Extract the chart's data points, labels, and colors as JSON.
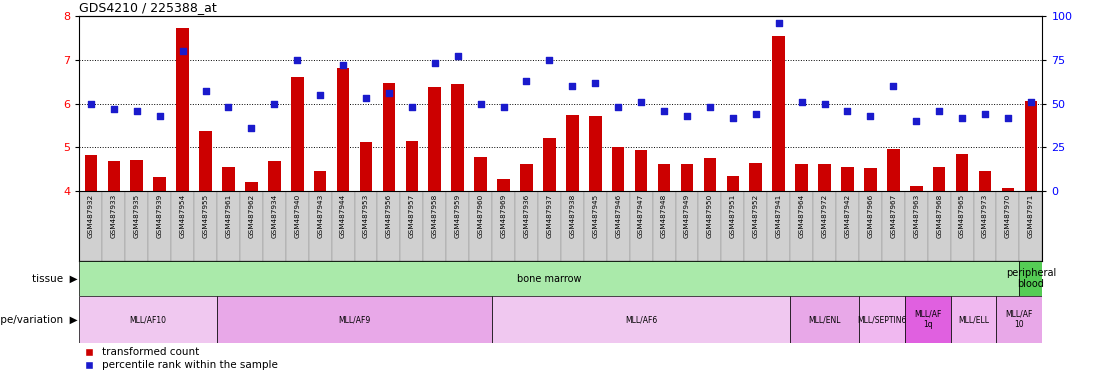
{
  "title": "GDS4210 / 225388_at",
  "samples": [
    "GSM487932",
    "GSM487933",
    "GSM487935",
    "GSM487939",
    "GSM487954",
    "GSM487955",
    "GSM487961",
    "GSM487962",
    "GSM487934",
    "GSM487940",
    "GSM487943",
    "GSM487944",
    "GSM487953",
    "GSM487956",
    "GSM487957",
    "GSM487958",
    "GSM487959",
    "GSM487960",
    "GSM487969",
    "GSM487936",
    "GSM487937",
    "GSM487938",
    "GSM487945",
    "GSM487946",
    "GSM487947",
    "GSM487948",
    "GSM487949",
    "GSM487950",
    "GSM487951",
    "GSM487952",
    "GSM487941",
    "GSM487964",
    "GSM487972",
    "GSM487942",
    "GSM487966",
    "GSM487967",
    "GSM487963",
    "GSM487968",
    "GSM487965",
    "GSM487973",
    "GSM487970",
    "GSM487971"
  ],
  "bar_values": [
    4.82,
    4.68,
    4.72,
    4.32,
    7.72,
    5.38,
    4.55,
    4.22,
    4.68,
    6.62,
    4.47,
    6.82,
    5.12,
    6.48,
    5.15,
    6.38,
    6.44,
    4.78,
    4.27,
    4.62,
    5.22,
    5.75,
    5.72,
    5.0,
    4.93,
    4.63,
    4.62,
    4.75,
    4.35,
    4.65,
    7.55,
    4.62,
    4.62,
    4.55,
    4.52,
    4.97,
    4.12,
    4.55,
    4.85,
    4.47,
    4.08,
    6.05
  ],
  "dot_values_pct": [
    50,
    47,
    46,
    43,
    80,
    57,
    48,
    36,
    50,
    75,
    55,
    72,
    53,
    56,
    48,
    73,
    77,
    50,
    48,
    63,
    75,
    60,
    62,
    48,
    51,
    46,
    43,
    48,
    42,
    44,
    96,
    51,
    50,
    46,
    43,
    60,
    40,
    46,
    42,
    44,
    42,
    51
  ],
  "ylim_left": [
    4.0,
    8.0
  ],
  "ylim_right": [
    0,
    100
  ],
  "yticks_left": [
    4,
    5,
    6,
    7,
    8
  ],
  "yticks_right": [
    0,
    25,
    50,
    75,
    100
  ],
  "bar_color": "#cc0000",
  "dot_color": "#1a1acc",
  "bg_color": "#ffffff",
  "tissue_groups": [
    {
      "label": "bone marrow",
      "start": 0,
      "end": 41,
      "color": "#aaeaaa"
    },
    {
      "label": "peripheral\nblood",
      "start": 41,
      "end": 42,
      "color": "#55cc55"
    }
  ],
  "genotype_groups": [
    {
      "label": "MLL/AF10",
      "start": 0,
      "end": 6,
      "color": "#f0c8f0"
    },
    {
      "label": "MLL/AF9",
      "start": 6,
      "end": 18,
      "color": "#e8a8e8"
    },
    {
      "label": "MLL/AF6",
      "start": 18,
      "end": 31,
      "color": "#f0c8f0"
    },
    {
      "label": "MLL/ENL",
      "start": 31,
      "end": 34,
      "color": "#e8a8e8"
    },
    {
      "label": "MLL/SEPTIN6",
      "start": 34,
      "end": 36,
      "color": "#f0b8f0"
    },
    {
      "label": "MLL/AF\n1q",
      "start": 36,
      "end": 38,
      "color": "#e060e0"
    },
    {
      "label": "MLL/ELL",
      "start": 38,
      "end": 40,
      "color": "#f0b8f0"
    },
    {
      "label": "MLL/AF\n10",
      "start": 40,
      "end": 42,
      "color": "#e8a8e8"
    }
  ],
  "legend_items": [
    {
      "label": "transformed count",
      "color": "#cc0000"
    },
    {
      "label": "percentile rank within the sample",
      "color": "#1a1acc"
    }
  ]
}
